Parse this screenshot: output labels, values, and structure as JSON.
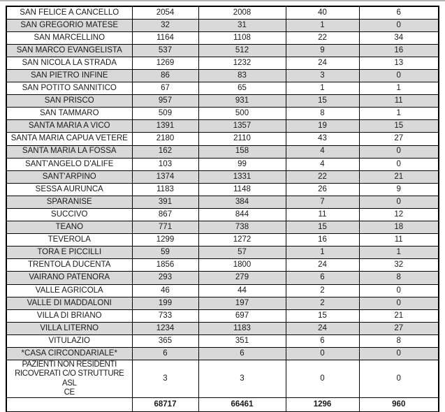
{
  "page": {
    "background": "#ffffff",
    "top_rule_color": "#b3b3b3"
  },
  "table": {
    "border_color": "#000000",
    "shaded_row_color": "#d9d9d9",
    "text_color": "#1a1a1a",
    "rows": [
      {
        "name": "SAN FELICE A CANCELLO",
        "values": [
          "2054",
          "2008",
          "40",
          "6"
        ]
      },
      {
        "name": "SAN GREGORIO MATESE",
        "values": [
          "32",
          "31",
          "1",
          "0"
        ]
      },
      {
        "name": "SAN MARCELLINO",
        "values": [
          "1164",
          "1108",
          "22",
          "34"
        ]
      },
      {
        "name": "SAN MARCO EVANGELISTA",
        "values": [
          "537",
          "512",
          "9",
          "16"
        ]
      },
      {
        "name": "SAN NICOLA LA STRADA",
        "values": [
          "1269",
          "1232",
          "24",
          "13"
        ]
      },
      {
        "name": "SAN PIETRO INFINE",
        "values": [
          "86",
          "83",
          "3",
          "0"
        ]
      },
      {
        "name": "SAN POTITO SANNITICO",
        "values": [
          "67",
          "65",
          "1",
          "1"
        ]
      },
      {
        "name": "SAN PRISCO",
        "values": [
          "957",
          "931",
          "15",
          "11"
        ]
      },
      {
        "name": "SAN TAMMARO",
        "values": [
          "509",
          "500",
          "8",
          "1"
        ]
      },
      {
        "name": "SANTA MARIA A VICO",
        "values": [
          "1391",
          "1357",
          "19",
          "15"
        ]
      },
      {
        "name": "SANTA MARIA CAPUA VETERE",
        "values": [
          "2180",
          "2110",
          "43",
          "27"
        ]
      },
      {
        "name": "SANTA MARIA LA FOSSA",
        "values": [
          "162",
          "158",
          "4",
          "0"
        ]
      },
      {
        "name": "SANT'ANGELO D'ALIFE",
        "values": [
          "103",
          "99",
          "4",
          "0"
        ]
      },
      {
        "name": "SANT'ARPINO",
        "values": [
          "1374",
          "1331",
          "22",
          "21"
        ]
      },
      {
        "name": "SESSA AURUNCA",
        "values": [
          "1183",
          "1148",
          "26",
          "9"
        ]
      },
      {
        "name": "SPARANISE",
        "values": [
          "391",
          "384",
          "7",
          "0"
        ]
      },
      {
        "name": "SUCCIVO",
        "values": [
          "867",
          "844",
          "11",
          "12"
        ]
      },
      {
        "name": "TEANO",
        "values": [
          "771",
          "738",
          "15",
          "18"
        ]
      },
      {
        "name": "TEVEROLA",
        "values": [
          "1299",
          "1272",
          "16",
          "11"
        ]
      },
      {
        "name": "TORA E PICCILLI",
        "values": [
          "59",
          "57",
          "1",
          "1"
        ]
      },
      {
        "name": "TRENTOLA DUCENTA",
        "values": [
          "1856",
          "1800",
          "24",
          "32"
        ]
      },
      {
        "name": "VAIRANO PATENORA",
        "values": [
          "293",
          "279",
          "6",
          "8"
        ]
      },
      {
        "name": "VALLE AGRICOLA",
        "values": [
          "46",
          "44",
          "2",
          "0"
        ]
      },
      {
        "name": "VALLE DI MADDALONI",
        "values": [
          "199",
          "197",
          "2",
          "0"
        ]
      },
      {
        "name": "VILLA DI BRIANO",
        "values": [
          "733",
          "697",
          "15",
          "21"
        ]
      },
      {
        "name": "VILLA LITERNO",
        "values": [
          "1234",
          "1183",
          "24",
          "27"
        ]
      },
      {
        "name": "VITULAZIO",
        "values": [
          "365",
          "351",
          "6",
          "8"
        ]
      },
      {
        "name": "*CASA CIRCONDARIALE*",
        "values": [
          "6",
          "6",
          "0",
          "0"
        ]
      },
      {
        "name": "PAZIENTI NON RESIDENTI\nRICOVERATI C/O STRUTTURE ASL\nCE",
        "values": [
          "3",
          "3",
          "0",
          "0"
        ],
        "tall": true
      }
    ],
    "totals_row": {
      "name": "",
      "values": [
        "68717",
        "66461",
        "1296",
        "960"
      ]
    }
  }
}
